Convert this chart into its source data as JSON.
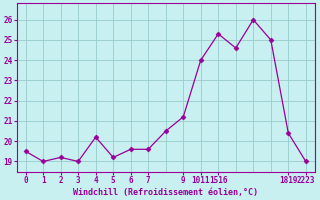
{
  "y_data": [
    19.5,
    19.0,
    19.2,
    19.0,
    20.2,
    19.2,
    19.6,
    19.6,
    20.5,
    21.2,
    24.0,
    25.3,
    24.6,
    26.0,
    25.0,
    20.4,
    19.0
  ],
  "x_indices": [
    0,
    1,
    2,
    3,
    4,
    5,
    6,
    7,
    8,
    9,
    10,
    11,
    12,
    13,
    14,
    15,
    16
  ],
  "xtick_indices": [
    0,
    1,
    2,
    3,
    4,
    5,
    6,
    7,
    9,
    10,
    11,
    15,
    16
  ],
  "xtick_labels": [
    "0",
    "1",
    "2",
    "3",
    "4",
    "5",
    "6",
    "7",
    "9",
    "1011",
    "1516",
    "1819",
    "2223"
  ],
  "yticks": [
    19,
    20,
    21,
    22,
    23,
    24,
    25,
    26
  ],
  "ylim": [
    18.5,
    26.8
  ],
  "xlim": [
    -0.5,
    16.5
  ],
  "xlabel": "Windchill (Refroidissement éolien,°C)",
  "line_color": "#990099",
  "marker": "D",
  "marker_size": 2.5,
  "bg_color": "#c8f0f0",
  "grid_color": "#99cccc"
}
